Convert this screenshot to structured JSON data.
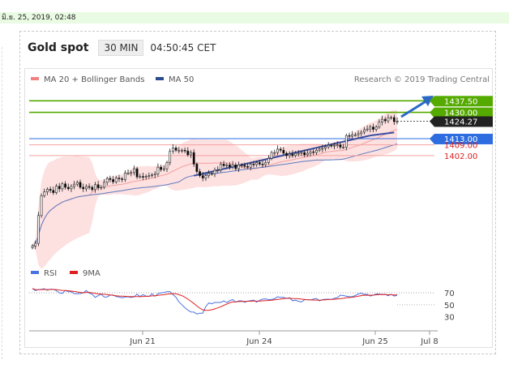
{
  "topbar": {
    "timestamp": "มิ.ย. 25, 2019, 02:48"
  },
  "header": {
    "title": "Gold spot",
    "timeframe": "30 MIN",
    "time": "04:50:45 CET"
  },
  "legend": {
    "items": [
      {
        "label": "MA 20 + Bollinger Bands",
        "color": "#f08080"
      },
      {
        "label": "MA 50",
        "color": "#2a4d8f"
      }
    ],
    "credit": "Research © 2019 Trading Central"
  },
  "colors": {
    "up_candle": "#ffffff",
    "down_candle": "#000000",
    "resistance": "#55aa00",
    "support": "#d91f1f",
    "pivot": "#2d6de0",
    "last": "#222222",
    "band_fill": "#fde0e0",
    "trendline": "#3a4fa0",
    "rsi": "#4a72e0",
    "rsi_ma": "#e02020"
  },
  "chart_data": [
    {
      "type": "candlestick",
      "title": "Gold spot",
      "x_ticks": [
        "Jun 21",
        "Jun 24",
        "Jun 25",
        "Jul 8"
      ],
      "ylim": [
        1340,
        1445
      ],
      "levels": [
        {
          "label": "1437.50",
          "value": 1437.5,
          "kind": "resistance"
        },
        {
          "label": "1430.00",
          "value": 1430.0,
          "kind": "resistance"
        },
        {
          "label": "1424.27",
          "value": 1424.27,
          "kind": "last"
        },
        {
          "label": "1413.00",
          "value": 1413.0,
          "kind": "pivot"
        },
        {
          "label": "1409.00",
          "value": 1409.0,
          "kind": "support"
        },
        {
          "label": "1402.00",
          "value": 1402.0,
          "kind": "support"
        }
      ],
      "close": [
        1343.5,
        1345.2,
        1363.2,
        1376.0,
        1378.5,
        1380.2,
        1379.5,
        1378.0,
        1382.2,
        1380.5,
        1383.7,
        1381.5,
        1380.5,
        1382.0,
        1383.5,
        1384.7,
        1381.5,
        1380.5,
        1382.0,
        1381.5,
        1380.0,
        1383.2,
        1381.2,
        1381.5,
        1384.7,
        1387.2,
        1386.5,
        1385.0,
        1387.5,
        1387.0,
        1386.5,
        1390.7,
        1390.7,
        1391.0,
        1393.5,
        1388.2,
        1388.5,
        1388.2,
        1388.5,
        1389.0,
        1389.5,
        1390.2,
        1394.5,
        1393.0,
        1393.5,
        1397.5,
        1404.7,
        1407.0,
        1405.5,
        1405.5,
        1405.5,
        1405.0,
        1402.5,
        1404.0,
        1396.5,
        1391.7,
        1389.0,
        1387.5,
        1389.0,
        1390.5,
        1390.2,
        1392.5,
        1392.7,
        1396.5,
        1395.5,
        1396.0,
        1394.7,
        1396.0,
        1393.5,
        1396.0,
        1395.7,
        1395.0,
        1394.5,
        1396.5,
        1396.2,
        1397.5,
        1396.5,
        1396.2,
        1397.5,
        1400.2,
        1404.0,
        1404.0,
        1406.2,
        1405.5,
        1403.5,
        1402.0,
        1403.0,
        1402.0,
        1403.5,
        1403.5,
        1404.0,
        1402.5,
        1403.5,
        1404.5,
        1404.0,
        1405.5,
        1406.2,
        1406.7,
        1407.7,
        1408.7,
        1408.2,
        1408.7,
        1409.0,
        1407.5,
        1407.5,
        1415.0,
        1414.5,
        1415.5,
        1415.5,
        1416.2,
        1417.2,
        1418.7,
        1419.2,
        1420.5,
        1419.0,
        1420.5,
        1423.7,
        1425.5,
        1424.5,
        1426.5,
        1426.7,
        1424.0,
        1424.3
      ],
      "rsi": {
        "ylim": [
          20,
          85
        ],
        "levels": [
          {
            "label": "70",
            "value": 70
          },
          {
            "label": "50",
            "value": 50
          },
          {
            "label": "30",
            "value": 30
          }
        ],
        "values": [
          77.0,
          73.7,
          75.2,
          75.9,
          76.6,
          74.2,
          76.0,
          75.9,
          73.6,
          69.8,
          69.0,
          73.9,
          71.7,
          71.7,
          68.6,
          68.4,
          68.7,
          69.7,
          73.7,
          69.5,
          67.5,
          62.4,
          65.2,
          67.7,
          62.9,
          63.1,
          66.1,
          66.5,
          63.6,
          63.0,
          61.6,
          63.0,
          63.4,
          62.1,
          63.1,
          67.6,
          63.7,
          66.9,
          64.5,
          63.9,
          68.4,
          64.1,
          68.5,
          70.0,
          70.5,
          71.8,
          72.0,
          67.0,
          62.7,
          55.0,
          50.0,
          45.0,
          41.0,
          38.0,
          37.7,
          34.6,
          35.9,
          36.0,
          46.9,
          53.1,
          51.7,
          53.8,
          53.8,
          53.9,
          56.4,
          53.6,
          56.9,
          58.6,
          54.2,
          56.5,
          56.5,
          54.1,
          56.0,
          57.0,
          57.6,
          54.3,
          57.5,
          59.4,
          59.9,
          58.5,
          58.8,
          60.1,
          63.5,
          62.3,
          62.4,
          60.6,
          61.7,
          56.7,
          57.6,
          55.7,
          54.7,
          58.4,
          58.5,
          58.2,
          59.5,
          60.6,
          56.6,
          58.6,
          59.2,
          59.3,
          58.9,
          60.8,
          61.8,
          66.1,
          65.4,
          64.3,
          63.4,
          63.7,
          65.4,
          68.2,
          69.0,
          67.4,
          67.4,
          64.5,
          66.0,
          67.9,
          68.0,
          66.8,
          67.4,
          65.1,
          67.4,
          64.6,
          65.6
        ]
      }
    }
  ]
}
